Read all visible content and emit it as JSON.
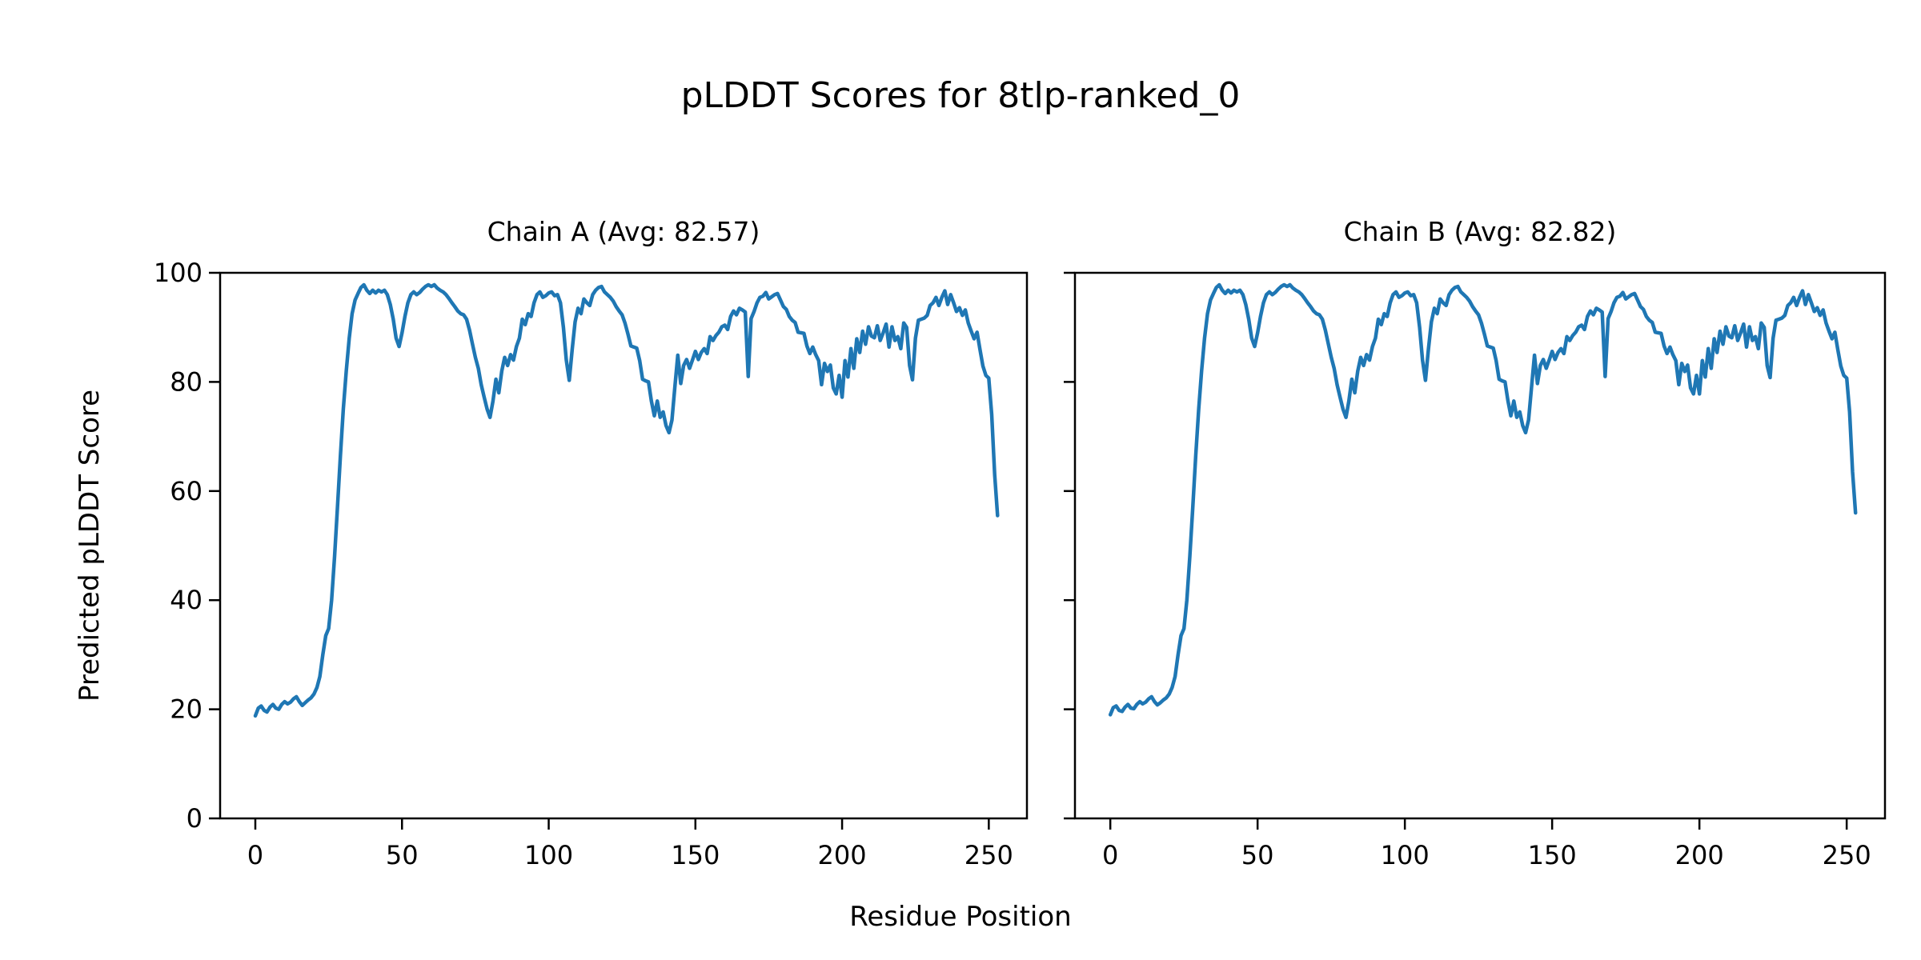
{
  "figure": {
    "title": "pLDDT Scores for 8tlp-ranked_0",
    "xlabel": "Residue Position",
    "ylabel": "Predicted pLDDT Score",
    "subplots": [
      {
        "title": "Chain A (Avg: 82.57)"
      },
      {
        "title": "Chain B (Avg: 82.82)"
      }
    ]
  },
  "chart_data": {
    "type": "line",
    "title": "pLDDT Scores for 8tlp-ranked_0",
    "xlabel": "Residue Position",
    "ylabel": "Predicted pLDDT Score",
    "xlim": [
      -12,
      263
    ],
    "ylim": [
      0,
      100
    ],
    "xticks": [
      0,
      50,
      100,
      150,
      200,
      250
    ],
    "yticks": [
      0,
      20,
      40,
      60,
      80,
      100
    ],
    "grid": false,
    "legend": "none",
    "line_color": "#1f77b4",
    "x_start": 0,
    "x_step": 1,
    "series": [
      {
        "name": "Chain A",
        "avg": 82.57,
        "values": [
          18.8,
          20.2,
          20.6,
          19.8,
          19.5,
          20.4,
          20.9,
          20.2,
          20.0,
          20.9,
          21.4,
          21.0,
          21.3,
          21.9,
          22.3,
          21.4,
          20.7,
          21.2,
          21.7,
          22.1,
          22.8,
          24.0,
          26.0,
          30.0,
          33.5,
          34.8,
          40.0,
          48.0,
          57.0,
          66.5,
          75.0,
          82.0,
          88.0,
          92.5,
          95.0,
          96.2,
          97.3,
          97.8,
          96.8,
          96.2,
          96.8,
          96.3,
          96.8,
          96.5,
          96.8,
          96.0,
          94.2,
          91.5,
          88.0,
          86.5,
          89.0,
          92.0,
          94.5,
          96.0,
          96.5,
          96.0,
          96.4,
          97.0,
          97.5,
          97.8,
          97.5,
          97.8,
          97.2,
          96.8,
          96.5,
          96.0,
          95.3,
          94.5,
          93.8,
          93.0,
          92.5,
          92.3,
          91.5,
          89.5,
          87.0,
          84.5,
          82.5,
          79.5,
          77.2,
          75.0,
          73.5,
          76.5,
          80.5,
          78.0,
          82.0,
          84.5,
          83.0,
          85.0,
          84.0,
          86.5,
          88.0,
          91.5,
          90.5,
          92.5,
          92.0,
          94.5,
          96.0,
          96.5,
          95.5,
          95.8,
          96.3,
          96.5,
          95.8,
          96.0,
          94.5,
          90.0,
          84.0,
          80.3,
          86.0,
          91.0,
          93.5,
          92.5,
          95.2,
          94.5,
          94.0,
          96.0,
          96.8,
          97.3,
          97.5,
          96.5,
          96.0,
          95.5,
          94.8,
          93.8,
          93.0,
          92.3,
          90.8,
          88.8,
          86.6,
          86.4,
          86.2,
          83.9,
          80.5,
          80.2,
          80.0,
          76.5,
          73.8,
          76.5,
          73.5,
          74.5,
          72.0,
          70.7,
          73.0,
          79.0,
          84.9,
          79.7,
          83.0,
          84.1,
          82.5,
          84.0,
          85.6,
          84.1,
          85.4,
          86.1,
          85.2,
          88.3,
          87.6,
          88.5,
          89.1,
          90.1,
          90.4,
          89.6,
          92.0,
          93.0,
          92.3,
          93.5,
          93.2,
          92.8,
          81.0,
          91.6,
          92.9,
          94.5,
          95.5,
          95.7,
          96.4,
          95.2,
          95.6,
          96.0,
          96.2,
          95.0,
          93.8,
          93.3,
          92.0,
          91.3,
          90.9,
          89.1,
          89.0,
          88.9,
          86.6,
          85.2,
          86.4,
          85.0,
          83.9,
          79.5,
          83.4,
          81.9,
          83.1,
          78.9,
          77.8,
          81.2,
          77.2,
          83.9,
          80.9,
          86.1,
          82.5,
          87.9,
          85.4,
          89.3,
          86.9,
          90.1,
          88.4,
          88.1,
          90.3,
          87.6,
          89.0,
          90.6,
          86.4,
          90.1,
          87.6,
          88.3,
          86.1,
          90.8,
          90.0,
          83.0,
          80.4,
          88.0,
          91.3,
          91.5,
          91.7,
          92.2,
          94.0,
          94.5,
          95.5,
          94.0,
          95.5,
          96.7,
          94.2,
          96.0,
          94.5,
          92.9,
          93.6,
          92.2,
          93.2,
          90.8,
          89.3,
          87.9,
          89.1,
          85.9,
          82.9,
          81.2,
          80.7,
          74.0,
          63.0,
          55.5
        ]
      },
      {
        "name": "Chain B",
        "avg": 82.82,
        "values": [
          19.0,
          20.3,
          20.6,
          19.8,
          19.6,
          20.4,
          20.9,
          20.2,
          20.1,
          20.9,
          21.4,
          21.0,
          21.3,
          21.9,
          22.3,
          21.4,
          20.8,
          21.2,
          21.7,
          22.1,
          22.8,
          24.0,
          26.0,
          30.0,
          33.5,
          34.8,
          40.0,
          48.0,
          57.0,
          66.5,
          75.0,
          82.0,
          88.0,
          92.5,
          95.0,
          96.2,
          97.3,
          97.8,
          96.8,
          96.2,
          96.8,
          96.3,
          96.8,
          96.5,
          96.8,
          96.0,
          94.2,
          91.5,
          88.0,
          86.5,
          89.0,
          92.0,
          94.5,
          96.0,
          96.5,
          96.0,
          96.4,
          97.0,
          97.5,
          97.8,
          97.5,
          97.8,
          97.2,
          96.8,
          96.5,
          96.0,
          95.3,
          94.5,
          93.8,
          93.0,
          92.5,
          92.3,
          91.5,
          89.5,
          87.0,
          84.5,
          82.5,
          79.5,
          77.2,
          75.0,
          73.5,
          76.5,
          80.5,
          78.0,
          82.0,
          84.5,
          83.0,
          85.0,
          84.0,
          86.5,
          88.0,
          91.5,
          90.5,
          92.5,
          92.0,
          94.5,
          96.0,
          96.5,
          95.5,
          95.8,
          96.3,
          96.5,
          95.8,
          96.0,
          94.5,
          90.0,
          84.0,
          80.3,
          86.0,
          91.0,
          93.5,
          92.5,
          95.2,
          94.5,
          94.0,
          96.0,
          96.8,
          97.3,
          97.5,
          96.5,
          96.0,
          95.5,
          94.8,
          93.8,
          93.0,
          92.3,
          90.8,
          88.8,
          86.6,
          86.4,
          86.2,
          83.9,
          80.5,
          80.2,
          80.0,
          76.5,
          73.8,
          76.5,
          73.5,
          74.5,
          72.0,
          70.7,
          73.0,
          79.0,
          84.9,
          79.7,
          83.0,
          84.1,
          82.5,
          84.0,
          85.6,
          84.1,
          85.4,
          86.1,
          85.2,
          88.3,
          87.6,
          88.5,
          89.1,
          90.1,
          90.4,
          89.6,
          92.0,
          93.0,
          92.3,
          93.5,
          93.2,
          92.8,
          81.0,
          91.6,
          92.9,
          94.5,
          95.5,
          95.7,
          96.4,
          95.2,
          95.6,
          96.0,
          96.2,
          95.0,
          93.8,
          93.3,
          92.0,
          91.3,
          90.9,
          89.1,
          89.0,
          88.9,
          86.6,
          85.2,
          86.4,
          85.0,
          83.9,
          79.5,
          83.4,
          81.9,
          83.1,
          78.9,
          77.8,
          81.2,
          77.8,
          83.9,
          80.9,
          86.1,
          82.5,
          87.9,
          85.4,
          89.3,
          86.9,
          90.1,
          88.4,
          88.1,
          90.3,
          87.6,
          89.0,
          90.6,
          86.4,
          90.1,
          87.6,
          88.3,
          86.1,
          90.8,
          90.0,
          83.0,
          80.8,
          88.0,
          91.3,
          91.5,
          91.7,
          92.2,
          94.0,
          94.5,
          95.5,
          94.0,
          95.5,
          96.7,
          94.2,
          96.0,
          94.5,
          92.9,
          93.6,
          92.2,
          93.2,
          90.8,
          89.3,
          87.9,
          89.1,
          85.9,
          82.9,
          81.2,
          80.7,
          74.5,
          63.5,
          56.0
        ]
      }
    ]
  },
  "layout_note": ""
}
